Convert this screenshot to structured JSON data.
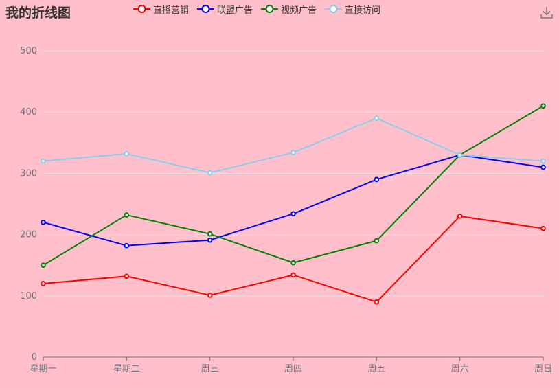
{
  "toolbox": {
    "download_icon": "download-icon"
  },
  "chart_data": {
    "type": "line",
    "title": "我的折线图",
    "categories": [
      "星期一",
      "星期二",
      "周三",
      "周四",
      "周五",
      "周六",
      "周日"
    ],
    "ylim": [
      0,
      500
    ],
    "yticks": [
      0,
      100,
      200,
      300,
      400,
      500
    ],
    "grid": true,
    "legend_position": "top-center",
    "series": [
      {
        "name": "直播营销",
        "color": "#FF0000",
        "values": [
          120,
          132,
          101,
          134,
          90,
          230,
          210
        ]
      },
      {
        "name": "联盟广告",
        "color": "#0000FF",
        "values": [
          220,
          182,
          191,
          234,
          290,
          330,
          310
        ]
      },
      {
        "name": "视频广告",
        "color": "#008000",
        "values": [
          150,
          232,
          201,
          154,
          190,
          330,
          410
        ]
      },
      {
        "name": "直接访问",
        "color": "#87CEEB",
        "values": [
          320,
          332,
          301,
          334,
          390,
          330,
          320
        ]
      }
    ]
  }
}
